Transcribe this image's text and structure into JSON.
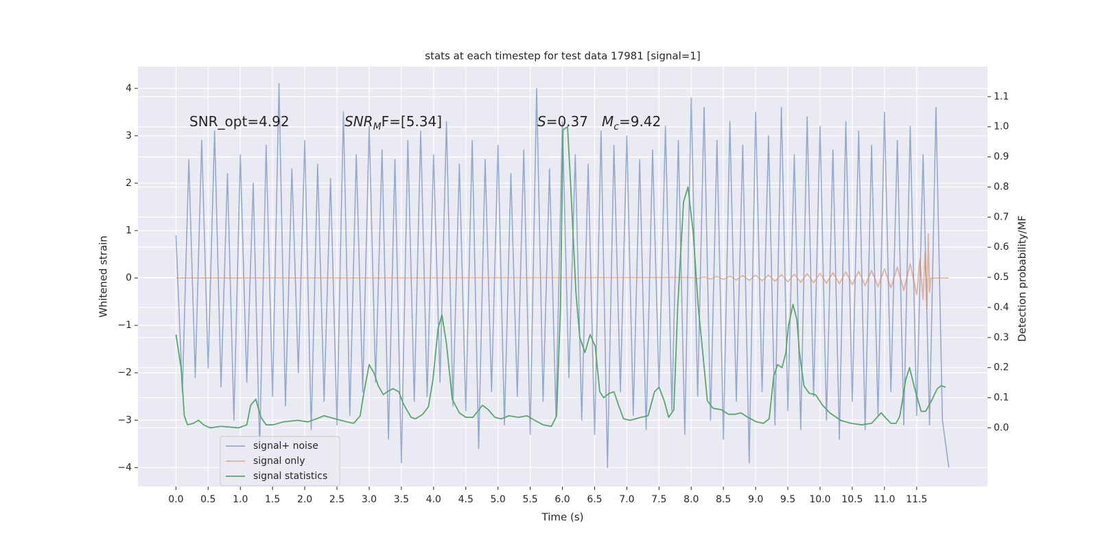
{
  "chart_data": {
    "type": "line",
    "title": "stats at each timestep for test data 17981 [signal=1]",
    "xlabel": "Time (s)",
    "ylabel": "Whitened strain",
    "y2label": "Detection probability/MF",
    "xlim": [
      -0.59,
      12.6
    ],
    "ylim": [
      -4.4,
      4.46
    ],
    "y2lim": [
      -0.195,
      1.2
    ],
    "xticks": [
      {
        "value": 0,
        "label": "0.0"
      },
      0.5,
      {
        "value": 1,
        "label": "1.0"
      },
      1.5,
      {
        "value": 2,
        "label": "2.0"
      },
      2.5,
      {
        "value": 3,
        "label": "3.0"
      },
      3.5,
      {
        "value": 4,
        "label": "4.0"
      },
      4.5,
      {
        "value": 5,
        "label": "5.0"
      },
      5.5,
      {
        "value": 6,
        "label": "6.0"
      },
      6.5,
      {
        "value": 7,
        "label": "7.0"
      },
      7.5,
      {
        "value": 8,
        "label": "8.0"
      },
      8.5,
      {
        "value": 9,
        "label": "9.0"
      },
      9.5,
      {
        "value": 10,
        "label": "10.0"
      },
      10.5,
      {
        "value": 11,
        "label": "11.0"
      },
      11.5
    ],
    "yticks": [
      {
        "value": -4,
        "label": "−4"
      },
      {
        "value": -3,
        "label": "−3"
      },
      {
        "value": -2,
        "label": "−2"
      },
      {
        "value": -1,
        "label": "−1"
      },
      0,
      1,
      2,
      3,
      4
    ],
    "y2ticks": [
      {
        "value": 0,
        "label": "0.0"
      },
      0.1,
      0.2,
      0.3,
      0.4,
      0.5,
      0.6,
      0.7,
      0.8,
      0.9,
      {
        "value": 1,
        "label": "1.0"
      },
      1.1
    ],
    "grid": true,
    "legend": "lower left",
    "annotations": [
      {
        "main": "SNR_opt=4.92",
        "italic": false
      },
      {
        "main": "SNR",
        "sub": "M",
        "tail": "F=[5.34]",
        "italic": true
      },
      {
        "main": "S",
        "tail": "=0.37",
        "italic": true
      },
      {
        "main": "M",
        "sub": "c",
        "tail": "=9.42",
        "italic": true
      }
    ],
    "series": [
      {
        "name": "signal+ noise",
        "color": "#4c72b0",
        "x": [
          0,
          0.1,
          0.2,
          0.3,
          0.4,
          0.5,
          0.6,
          0.7,
          0.8,
          0.9,
          1.0,
          1.1,
          1.2,
          1.3,
          1.4,
          1.5,
          1.6,
          1.7,
          1.8,
          1.9,
          2.0,
          2.1,
          2.2,
          2.3,
          2.4,
          2.5,
          2.6,
          2.7,
          2.8,
          2.9,
          3.0,
          3.1,
          3.2,
          3.3,
          3.4,
          3.5,
          3.6,
          3.7,
          3.8,
          3.9,
          4.0,
          4.1,
          4.2,
          4.3,
          4.4,
          4.5,
          4.6,
          4.7,
          4.8,
          4.9,
          5.0,
          5.1,
          5.2,
          5.3,
          5.4,
          5.5,
          5.6,
          5.7,
          5.8,
          5.9,
          6.0,
          6.1,
          6.2,
          6.3,
          6.4,
          6.5,
          6.6,
          6.7,
          6.8,
          6.9,
          7.0,
          7.1,
          7.2,
          7.3,
          7.4,
          7.5,
          7.6,
          7.7,
          7.8,
          7.9,
          8.0,
          8.1,
          8.2,
          8.3,
          8.4,
          8.5,
          8.6,
          8.7,
          8.8,
          8.9,
          9.0,
          9.1,
          9.2,
          9.3,
          9.4,
          9.5,
          9.6,
          9.7,
          9.8,
          9.9,
          10.0,
          10.1,
          10.2,
          10.3,
          10.4,
          10.5,
          10.6,
          10.7,
          10.8,
          10.9,
          11.0,
          11.1,
          11.2,
          11.3,
          11.4,
          11.5,
          11.6,
          11.7,
          11.8,
          11.9,
          12.0
        ],
        "values": [
          0.9,
          -2.4,
          2.5,
          -2.1,
          2.9,
          -1.9,
          3.1,
          -2.3,
          2.2,
          -3.0,
          2.6,
          -2.2,
          2.0,
          -3.6,
          2.8,
          -2.5,
          4.1,
          -2.7,
          2.3,
          -2.0,
          2.9,
          -3.2,
          2.4,
          -2.6,
          2.1,
          -3.1,
          3.5,
          -2.9,
          2.6,
          -2.4,
          3.2,
          -2.2,
          2.7,
          -3.4,
          2.5,
          -3.9,
          2.9,
          -2.6,
          3.1,
          -2.5,
          2.6,
          -2.2,
          3.3,
          -2.7,
          2.4,
          -2.8,
          2.9,
          -3.6,
          2.5,
          -2.4,
          2.8,
          -3.1,
          2.2,
          -2.5,
          2.7,
          -3.3,
          4.0,
          -2.6,
          2.3,
          -2.9,
          3.3,
          -2.1,
          2.6,
          -3.0,
          2.4,
          -3.3,
          3.1,
          -4.0,
          2.8,
          -2.4,
          3.0,
          -2.9,
          2.5,
          -3.2,
          2.7,
          -2.3,
          3.2,
          -2.8,
          2.9,
          -3.3,
          3.8,
          -2.5,
          3.6,
          -3.0,
          2.9,
          -3.4,
          3.3,
          -2.6,
          2.8,
          -3.9,
          3.5,
          -2.4,
          3.0,
          -3.1,
          3.6,
          -2.8,
          2.6,
          -3.2,
          3.4,
          -2.5,
          3.2,
          -3.0,
          2.7,
          -3.4,
          3.3,
          -2.6,
          3.1,
          -3.2,
          2.8,
          -2.9,
          3.5,
          -2.4,
          2.9,
          -3.1,
          3.2,
          -2.9,
          2.6,
          -3.1,
          3.6,
          -3.0,
          -4.0
        ]
      },
      {
        "name": "signal only",
        "color": "#dd8452",
        "x": [
          0,
          8.0,
          8.1,
          8.2,
          8.3,
          8.4,
          8.5,
          8.6,
          8.7,
          8.8,
          8.9,
          9.0,
          9.1,
          9.2,
          9.3,
          9.4,
          9.5,
          9.6,
          9.7,
          9.8,
          9.9,
          10.0,
          10.1,
          10.2,
          10.3,
          10.4,
          10.5,
          10.6,
          10.7,
          10.8,
          10.9,
          11.0,
          11.1,
          11.2,
          11.3,
          11.4,
          11.5,
          11.55,
          11.6,
          11.63,
          11.66,
          11.68,
          11.7,
          11.72,
          12.0
        ],
        "values": [
          0,
          0.01,
          -0.01,
          0.02,
          -0.02,
          0.03,
          -0.03,
          0.04,
          -0.04,
          0.05,
          -0.05,
          0.06,
          -0.06,
          0.06,
          -0.07,
          0.07,
          -0.08,
          0.08,
          -0.09,
          0.09,
          -0.1,
          0.1,
          -0.11,
          0.11,
          -0.12,
          0.13,
          -0.14,
          0.14,
          -0.16,
          0.16,
          -0.18,
          0.19,
          -0.21,
          0.23,
          -0.26,
          0.3,
          -0.35,
          0.4,
          -0.45,
          0.55,
          -0.65,
          0.93,
          -0.3,
          0,
          0
        ]
      },
      {
        "name": "signal statistics",
        "color": "#55a868",
        "axis": "y2",
        "x": [
          0,
          0.08,
          0.13,
          0.18,
          0.27,
          0.35,
          0.43,
          0.53,
          0.7,
          0.97,
          1.1,
          1.16,
          1.24,
          1.32,
          1.4,
          1.51,
          1.67,
          1.89,
          2.05,
          2.18,
          2.3,
          2.47,
          2.65,
          2.76,
          2.86,
          2.92,
          3.0,
          3.08,
          3.14,
          3.22,
          3.28,
          3.37,
          3.46,
          3.53,
          3.65,
          3.72,
          3.83,
          3.92,
          3.99,
          4.07,
          4.13,
          4.2,
          4.29,
          4.4,
          4.5,
          4.61,
          4.76,
          4.85,
          4.95,
          5.05,
          5.17,
          5.32,
          5.45,
          5.57,
          5.7,
          5.83,
          5.91,
          5.97,
          6.01,
          6.08,
          6.13,
          6.21,
          6.27,
          6.35,
          6.43,
          6.51,
          6.58,
          6.64,
          6.73,
          6.8,
          6.88,
          6.95,
          7.05,
          7.22,
          7.33,
          7.43,
          7.5,
          7.58,
          7.65,
          7.73,
          7.79,
          7.88,
          7.95,
          8.03,
          8.11,
          8.17,
          8.25,
          8.34,
          8.47,
          8.58,
          8.68,
          8.77,
          8.88,
          9.01,
          9.12,
          9.21,
          9.28,
          9.34,
          9.41,
          9.47,
          9.51,
          9.58,
          9.64,
          9.68,
          9.75,
          9.83,
          9.93,
          10.04,
          10.15,
          10.32,
          10.48,
          10.64,
          10.8,
          10.95,
          11.01,
          11.1,
          11.18,
          11.24,
          11.33,
          11.39,
          11.47,
          11.57,
          11.64,
          11.73,
          11.82,
          11.88,
          11.95
        ],
        "values": [
          0.31,
          0.2,
          0.04,
          0.01,
          0.015,
          0.025,
          0.01,
          0.0,
          0.005,
          0.0,
          0.01,
          0.075,
          0.095,
          0.035,
          0.01,
          0.01,
          0.02,
          0.025,
          0.02,
          0.03,
          0.04,
          0.03,
          0.02,
          0.015,
          0.04,
          0.12,
          0.21,
          0.18,
          0.14,
          0.11,
          0.12,
          0.13,
          0.12,
          0.08,
          0.035,
          0.03,
          0.045,
          0.07,
          0.16,
          0.33,
          0.375,
          0.28,
          0.095,
          0.05,
          0.035,
          0.035,
          0.075,
          0.06,
          0.035,
          0.03,
          0.04,
          0.035,
          0.04,
          0.025,
          0.01,
          0.005,
          0.04,
          0.4,
          0.99,
          1.0,
          0.8,
          0.45,
          0.3,
          0.25,
          0.31,
          0.27,
          0.12,
          0.1,
          0.115,
          0.12,
          0.07,
          0.03,
          0.025,
          0.035,
          0.04,
          0.12,
          0.135,
          0.09,
          0.035,
          0.06,
          0.4,
          0.75,
          0.8,
          0.65,
          0.4,
          0.27,
          0.09,
          0.065,
          0.06,
          0.045,
          0.045,
          0.05,
          0.035,
          0.02,
          0.015,
          0.03,
          0.17,
          0.21,
          0.2,
          0.25,
          0.34,
          0.41,
          0.36,
          0.25,
          0.14,
          0.115,
          0.11,
          0.075,
          0.05,
          0.025,
          0.015,
          0.01,
          0.015,
          0.05,
          0.035,
          0.015,
          0.015,
          0.04,
          0.16,
          0.2,
          0.13,
          0.055,
          0.055,
          0.09,
          0.13,
          0.14,
          0.135
        ]
      }
    ]
  }
}
